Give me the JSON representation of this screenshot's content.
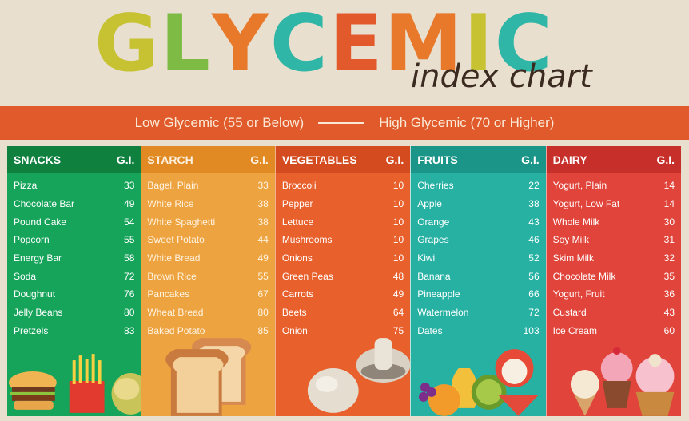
{
  "title": {
    "letters": [
      {
        "char": "G",
        "color": "#c7c232"
      },
      {
        "char": "L",
        "color": "#7dbb45"
      },
      {
        "char": "Y",
        "color": "#e8792a"
      },
      {
        "char": "C",
        "color": "#2fb6a6"
      },
      {
        "char": "E",
        "color": "#e25a2c"
      },
      {
        "char": "M",
        "color": "#e8792a"
      },
      {
        "char": "I",
        "color": "#c7c232"
      },
      {
        "char": "C",
        "color": "#2fb6a6"
      }
    ],
    "subtitle": "index chart"
  },
  "band": {
    "low": "Low Glycemic (55 or Below)",
    "high": "High Glycemic (70 or Higher)"
  },
  "columns": [
    {
      "name": "SNACKS",
      "gi_label": "G.I.",
      "color": "#16a35a",
      "items": [
        {
          "food": "Pizza",
          "gi": "33"
        },
        {
          "food": "Chocolate Bar",
          "gi": "49"
        },
        {
          "food": "Pound Cake",
          "gi": "54"
        },
        {
          "food": "Popcorn",
          "gi": "55"
        },
        {
          "food": "Energy Bar",
          "gi": "58"
        },
        {
          "food": "Soda",
          "gi": "72"
        },
        {
          "food": "Doughnut",
          "gi": "76"
        },
        {
          "food": "Jelly Beans",
          "gi": "80"
        },
        {
          "food": "Pretzels",
          "gi": "83"
        }
      ]
    },
    {
      "name": "STARCH",
      "gi_label": "G.I.",
      "color": "#eda33f",
      "items": [
        {
          "food": "Bagel, Plain",
          "gi": "33"
        },
        {
          "food": "White Rice",
          "gi": "38"
        },
        {
          "food": "White Spaghetti",
          "gi": "38"
        },
        {
          "food": "Sweet Potato",
          "gi": "44"
        },
        {
          "food": "White Bread",
          "gi": "49"
        },
        {
          "food": "Brown Rice",
          "gi": "55"
        },
        {
          "food": "Pancakes",
          "gi": "67"
        },
        {
          "food": "Wheat Bread",
          "gi": "80"
        },
        {
          "food": "Baked Potato",
          "gi": "85"
        }
      ]
    },
    {
      "name": "VEGETABLES",
      "gi_label": "G.I.",
      "color": "#e8602c",
      "items": [
        {
          "food": "Broccoli",
          "gi": "10"
        },
        {
          "food": "Pepper",
          "gi": "10"
        },
        {
          "food": "Lettuce",
          "gi": "10"
        },
        {
          "food": "Mushrooms",
          "gi": "10"
        },
        {
          "food": "Onions",
          "gi": "10"
        },
        {
          "food": "Green Peas",
          "gi": "48"
        },
        {
          "food": "Carrots",
          "gi": "49"
        },
        {
          "food": "Beets",
          "gi": "64"
        },
        {
          "food": "Onion",
          "gi": "75"
        }
      ]
    },
    {
      "name": "FRUITS",
      "gi_label": "G.I.",
      "color": "#27b1a3",
      "items": [
        {
          "food": "Cherries",
          "gi": "22"
        },
        {
          "food": "Apple",
          "gi": "38"
        },
        {
          "food": "Orange",
          "gi": "43"
        },
        {
          "food": "Grapes",
          "gi": "46"
        },
        {
          "food": "Kiwi",
          "gi": "52"
        },
        {
          "food": "Banana",
          "gi": "56"
        },
        {
          "food": "Pineapple",
          "gi": "66"
        },
        {
          "food": "Watermelon",
          "gi": "72"
        },
        {
          "food": "Dates",
          "gi": "103"
        }
      ]
    },
    {
      "name": "DAIRY",
      "gi_label": "G.I.",
      "color": "#e0443a",
      "items": [
        {
          "food": "Yogurt, Plain",
          "gi": "14"
        },
        {
          "food": "Yogurt, Low Fat",
          "gi": "14"
        },
        {
          "food": "Whole Milk",
          "gi": "30"
        },
        {
          "food": "Soy Milk",
          "gi": "31"
        },
        {
          "food": "Skim Milk",
          "gi": "32"
        },
        {
          "food": "Chocolate Milk",
          "gi": "35"
        },
        {
          "food": "Yogurt, Fruit",
          "gi": "36"
        },
        {
          "food": "Custard",
          "gi": "43"
        },
        {
          "food": "Ice Cream",
          "gi": "60"
        }
      ]
    }
  ],
  "illustrations": [
    "burger-fries-illustration",
    "bread-slices-illustration",
    "mushrooms-illustration",
    "fruit-pile-illustration",
    "ice-cream-cupcake-illustration"
  ]
}
